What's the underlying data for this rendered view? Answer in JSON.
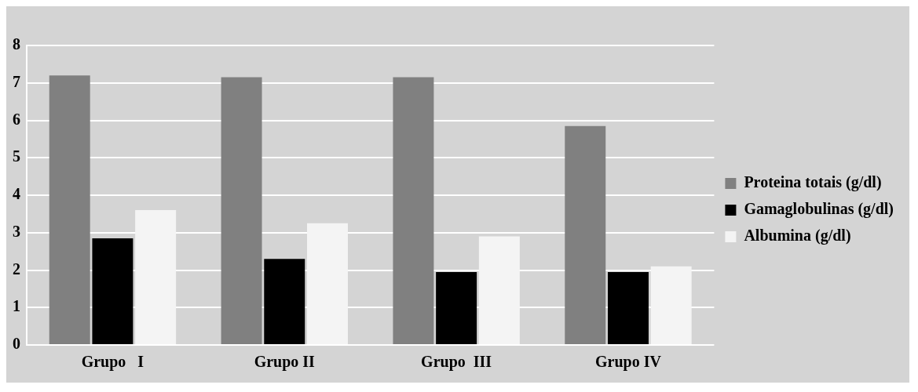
{
  "chart_data": {
    "type": "bar",
    "categories": [
      "Grupo   I",
      "Grupo II",
      "Grupo  III",
      "Grupo IV"
    ],
    "series": [
      {
        "name": "Proteina totais (g/dl)",
        "color": "#808080",
        "values": [
          7.2,
          7.15,
          7.15,
          5.85
        ]
      },
      {
        "name": "Gamaglobulinas (g/dl)",
        "color": "#000000",
        "values": [
          2.85,
          2.3,
          1.95,
          1.95
        ]
      },
      {
        "name": "Albumina (g/dl)",
        "color": "#f4f4f4",
        "values": [
          3.6,
          3.25,
          2.9,
          2.1
        ]
      }
    ],
    "ylim": [
      0,
      8
    ],
    "yticks": [
      0,
      1,
      2,
      3,
      4,
      5,
      6,
      7,
      8
    ],
    "grid": "y",
    "legend": "right"
  }
}
